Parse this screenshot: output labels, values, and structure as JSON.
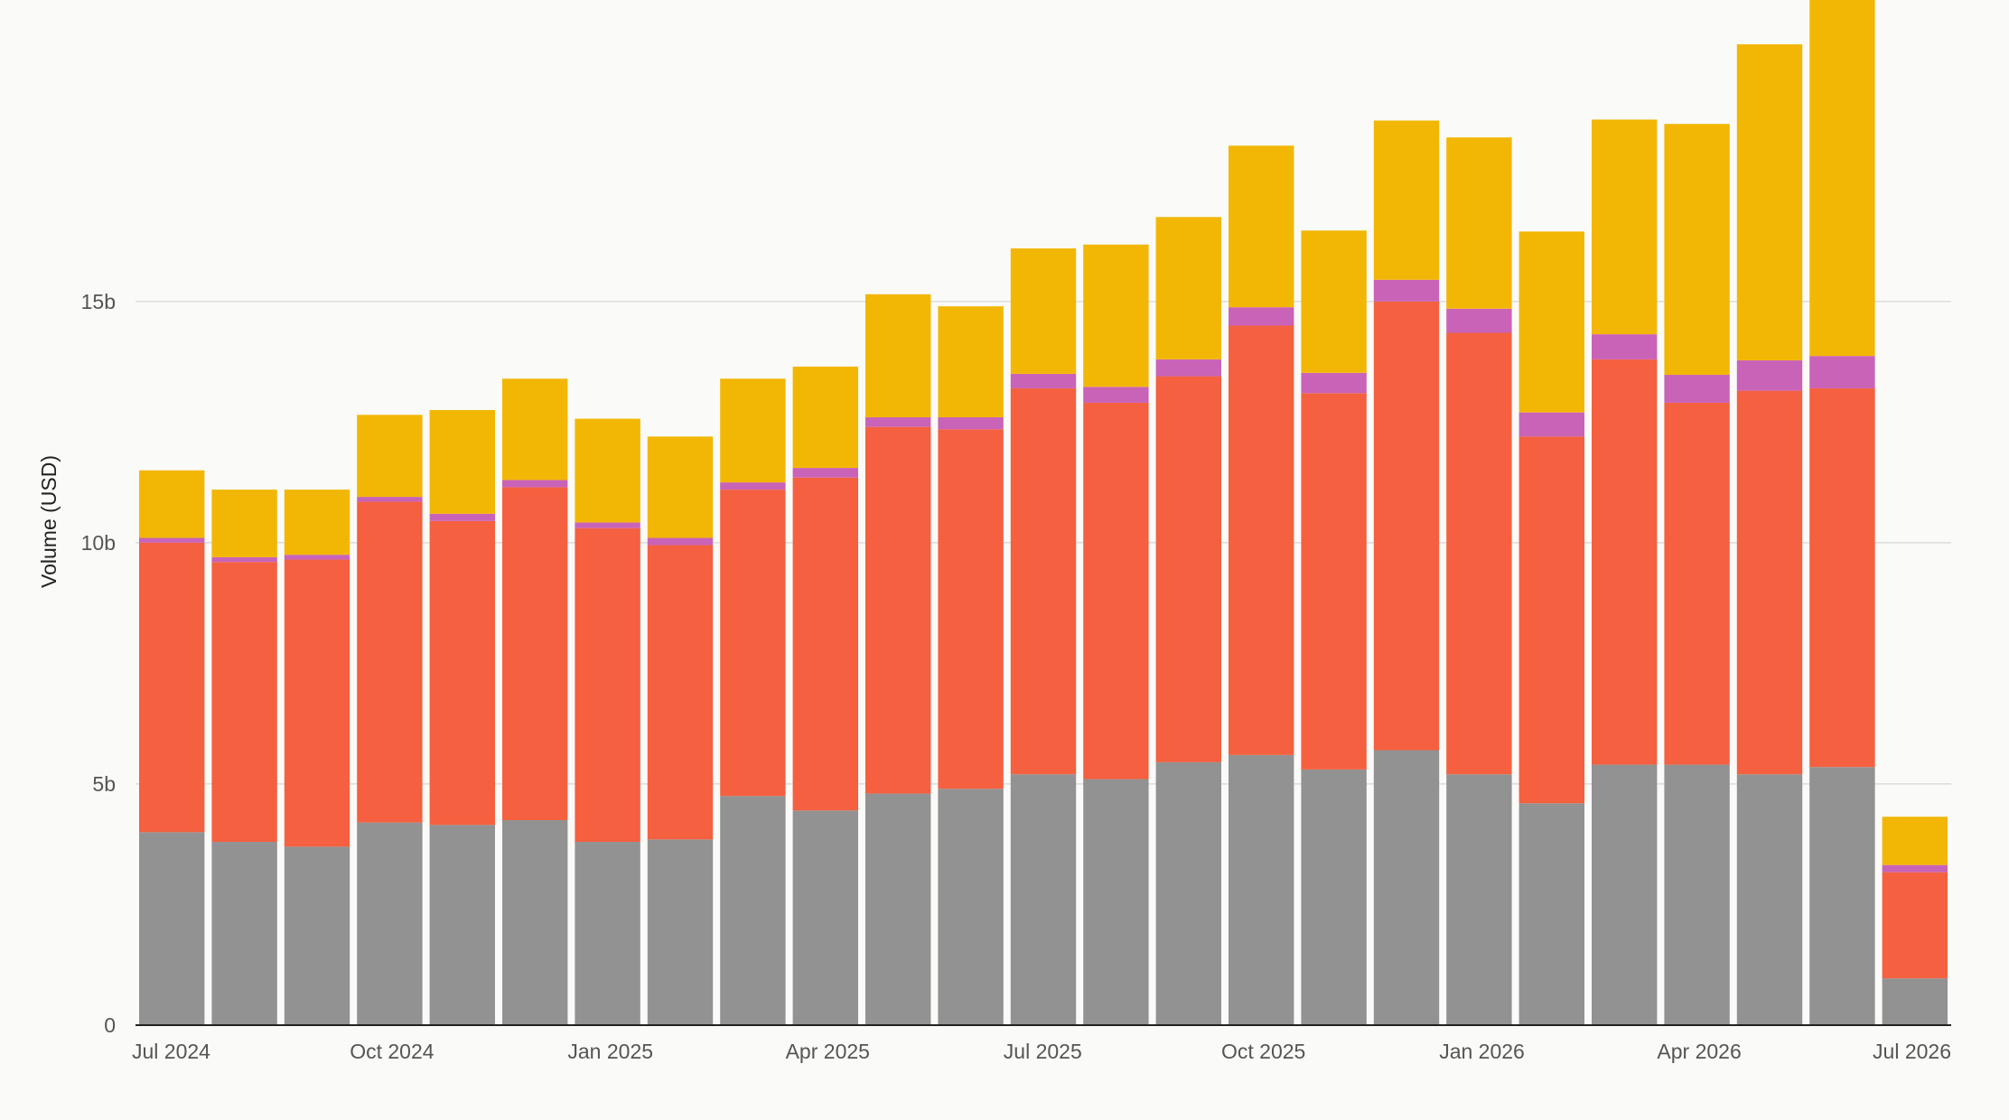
{
  "chart_data": {
    "type": "bar",
    "stacked": true,
    "title": "",
    "xlabel": "",
    "ylabel": "Volume (USD)",
    "ylim": [
      0,
      20.5
    ],
    "y_ticks": [
      {
        "value": 0,
        "label": "0"
      },
      {
        "value": 5,
        "label": "5b"
      },
      {
        "value": 10,
        "label": "10b"
      },
      {
        "value": 15,
        "label": "15b"
      }
    ],
    "x_tick_labels": [
      {
        "index": 0,
        "label": "Jul 2024"
      },
      {
        "index": 3,
        "label": "Oct 2024"
      },
      {
        "index": 6,
        "label": "Jan 2025"
      },
      {
        "index": 9,
        "label": "Apr 2025"
      },
      {
        "index": 12,
        "label": "Jul 2025"
      },
      {
        "index": 15,
        "label": "Oct 2025"
      },
      {
        "index": 18,
        "label": "Jan 2026"
      },
      {
        "index": 21,
        "label": "Apr 2026"
      },
      {
        "index": 24,
        "label": "Jul 2026"
      }
    ],
    "categories": [
      "Jul 2024",
      "Aug 2024",
      "Sep 2024",
      "Oct 2024",
      "Nov 2024",
      "Dec 2024",
      "Jan 2025",
      "Feb 2025",
      "Mar 2025",
      "Apr 2025",
      "May 2025",
      "Jun 2025",
      "Jul 2025",
      "Aug 2025",
      "Sep 2025",
      "Oct 2025",
      "Nov 2025",
      "Dec 2025",
      "Jan 2026",
      "Feb 2026",
      "Mar 2026",
      "Apr 2026",
      "May 2026",
      "Jun 2026",
      "Jul 2026"
    ],
    "grid": true,
    "legend": "none",
    "series": [
      {
        "color": "#929292",
        "values": [
          4.0,
          3.8,
          3.7,
          4.2,
          4.15,
          4.25,
          3.8,
          3.85,
          4.75,
          4.45,
          4.8,
          4.9,
          5.2,
          5.1,
          5.45,
          5.6,
          5.3,
          5.7,
          5.2,
          4.6,
          5.4,
          5.4,
          5.2,
          5.35,
          0.97
        ]
      },
      {
        "color": "#f46040",
        "values": [
          6.0,
          5.8,
          5.95,
          6.65,
          6.3,
          6.9,
          6.5,
          6.1,
          6.35,
          6.9,
          7.6,
          7.45,
          8.0,
          7.8,
          8.0,
          8.9,
          7.8,
          9.3,
          9.15,
          7.6,
          8.4,
          7.5,
          7.95,
          7.85,
          2.2
        ]
      },
      {
        "color": "#c963b7",
        "values": [
          0.1,
          0.1,
          0.1,
          0.1,
          0.15,
          0.15,
          0.12,
          0.15,
          0.15,
          0.2,
          0.2,
          0.25,
          0.3,
          0.33,
          0.35,
          0.38,
          0.42,
          0.45,
          0.5,
          0.5,
          0.52,
          0.58,
          0.63,
          0.67,
          0.15
        ]
      },
      {
        "color": "#f2b705",
        "values": [
          1.4,
          1.4,
          1.35,
          1.7,
          2.15,
          2.1,
          2.15,
          2.1,
          2.15,
          2.1,
          2.55,
          2.3,
          2.6,
          2.95,
          2.95,
          3.35,
          2.95,
          3.3,
          3.55,
          3.75,
          4.45,
          5.2,
          6.55,
          7.8,
          1.0
        ]
      }
    ]
  }
}
